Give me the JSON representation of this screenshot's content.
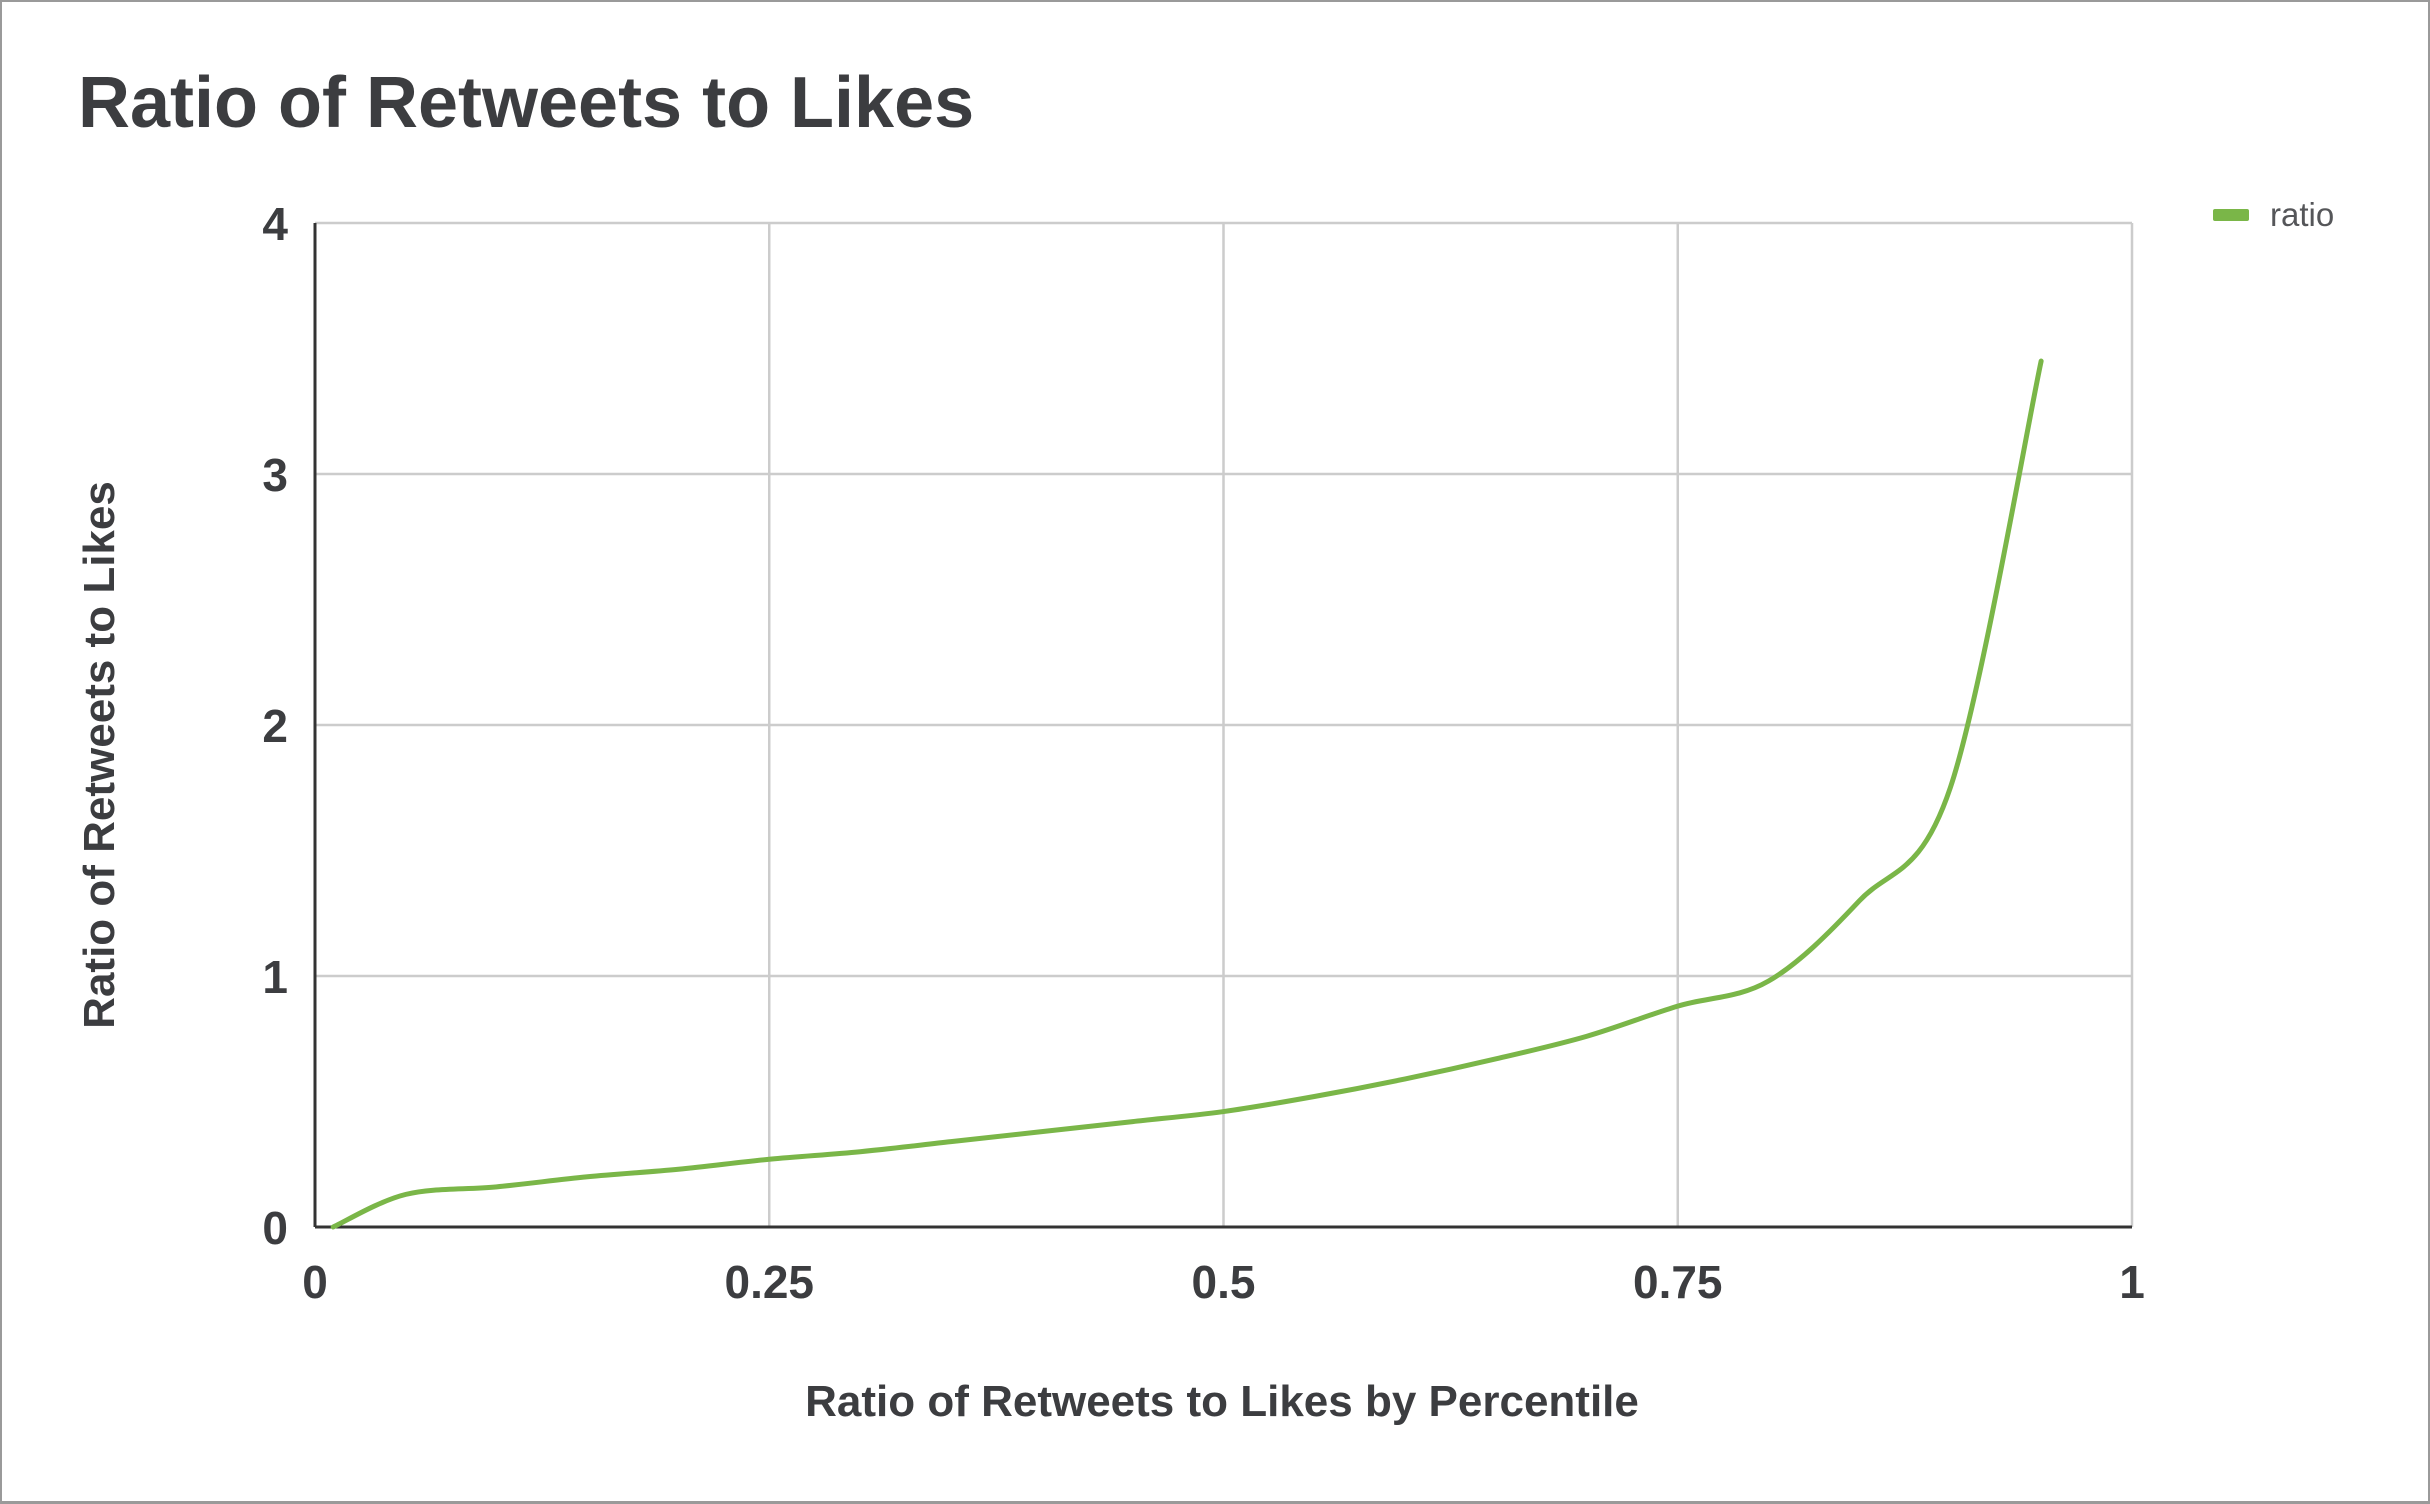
{
  "chart_data": {
    "type": "line",
    "title": "Ratio of Retweets to Likes",
    "xlabel": "Ratio of Retweets to Likes by Percentile",
    "ylabel": "Ratio of Retweets to Likes",
    "xlim": [
      0,
      1
    ],
    "ylim": [
      0,
      4
    ],
    "x_ticks": [
      "0",
      "0.25",
      "0.5",
      "0.75",
      "1"
    ],
    "y_ticks": [
      "0",
      "1",
      "2",
      "3",
      "4"
    ],
    "grid": true,
    "legend": {
      "position": "top-right",
      "entries": [
        "ratio"
      ]
    },
    "series": [
      {
        "name": "ratio",
        "color": "#7ab648",
        "x": [
          0.01,
          0.05,
          0.1,
          0.15,
          0.2,
          0.25,
          0.3,
          0.35,
          0.4,
          0.45,
          0.5,
          0.55,
          0.6,
          0.65,
          0.7,
          0.75,
          0.8,
          0.85,
          0.9,
          0.95
        ],
        "y": [
          0.0,
          0.13,
          0.16,
          0.2,
          0.23,
          0.27,
          0.3,
          0.34,
          0.38,
          0.42,
          0.46,
          0.52,
          0.59,
          0.67,
          0.76,
          0.88,
          0.98,
          1.3,
          1.75,
          3.45
        ]
      }
    ]
  }
}
